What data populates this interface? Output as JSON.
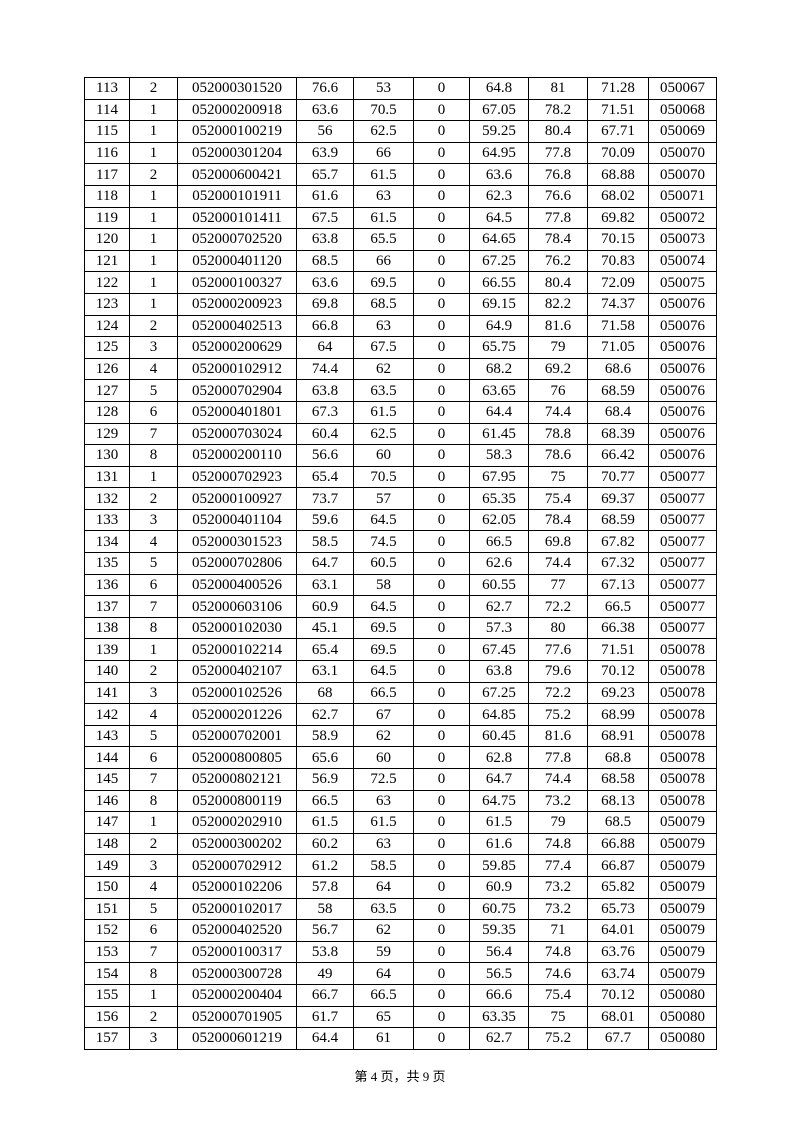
{
  "table": {
    "rows": [
      [
        "113",
        "2",
        "052000301520",
        "76.6",
        "53",
        "0",
        "64.8",
        "81",
        "71.28",
        "050067"
      ],
      [
        "114",
        "1",
        "052000200918",
        "63.6",
        "70.5",
        "0",
        "67.05",
        "78.2",
        "71.51",
        "050068"
      ],
      [
        "115",
        "1",
        "052000100219",
        "56",
        "62.5",
        "0",
        "59.25",
        "80.4",
        "67.71",
        "050069"
      ],
      [
        "116",
        "1",
        "052000301204",
        "63.9",
        "66",
        "0",
        "64.95",
        "77.8",
        "70.09",
        "050070"
      ],
      [
        "117",
        "2",
        "052000600421",
        "65.7",
        "61.5",
        "0",
        "63.6",
        "76.8",
        "68.88",
        "050070"
      ],
      [
        "118",
        "1",
        "052000101911",
        "61.6",
        "63",
        "0",
        "62.3",
        "76.6",
        "68.02",
        "050071"
      ],
      [
        "119",
        "1",
        "052000101411",
        "67.5",
        "61.5",
        "0",
        "64.5",
        "77.8",
        "69.82",
        "050072"
      ],
      [
        "120",
        "1",
        "052000702520",
        "63.8",
        "65.5",
        "0",
        "64.65",
        "78.4",
        "70.15",
        "050073"
      ],
      [
        "121",
        "1",
        "052000401120",
        "68.5",
        "66",
        "0",
        "67.25",
        "76.2",
        "70.83",
        "050074"
      ],
      [
        "122",
        "1",
        "052000100327",
        "63.6",
        "69.5",
        "0",
        "66.55",
        "80.4",
        "72.09",
        "050075"
      ],
      [
        "123",
        "1",
        "052000200923",
        "69.8",
        "68.5",
        "0",
        "69.15",
        "82.2",
        "74.37",
        "050076"
      ],
      [
        "124",
        "2",
        "052000402513",
        "66.8",
        "63",
        "0",
        "64.9",
        "81.6",
        "71.58",
        "050076"
      ],
      [
        "125",
        "3",
        "052000200629",
        "64",
        "67.5",
        "0",
        "65.75",
        "79",
        "71.05",
        "050076"
      ],
      [
        "126",
        "4",
        "052000102912",
        "74.4",
        "62",
        "0",
        "68.2",
        "69.2",
        "68.6",
        "050076"
      ],
      [
        "127",
        "5",
        "052000702904",
        "63.8",
        "63.5",
        "0",
        "63.65",
        "76",
        "68.59",
        "050076"
      ],
      [
        "128",
        "6",
        "052000401801",
        "67.3",
        "61.5",
        "0",
        "64.4",
        "74.4",
        "68.4",
        "050076"
      ],
      [
        "129",
        "7",
        "052000703024",
        "60.4",
        "62.5",
        "0",
        "61.45",
        "78.8",
        "68.39",
        "050076"
      ],
      [
        "130",
        "8",
        "052000200110",
        "56.6",
        "60",
        "0",
        "58.3",
        "78.6",
        "66.42",
        "050076"
      ],
      [
        "131",
        "1",
        "052000702923",
        "65.4",
        "70.5",
        "0",
        "67.95",
        "75",
        "70.77",
        "050077"
      ],
      [
        "132",
        "2",
        "052000100927",
        "73.7",
        "57",
        "0",
        "65.35",
        "75.4",
        "69.37",
        "050077"
      ],
      [
        "133",
        "3",
        "052000401104",
        "59.6",
        "64.5",
        "0",
        "62.05",
        "78.4",
        "68.59",
        "050077"
      ],
      [
        "134",
        "4",
        "052000301523",
        "58.5",
        "74.5",
        "0",
        "66.5",
        "69.8",
        "67.82",
        "050077"
      ],
      [
        "135",
        "5",
        "052000702806",
        "64.7",
        "60.5",
        "0",
        "62.6",
        "74.4",
        "67.32",
        "050077"
      ],
      [
        "136",
        "6",
        "052000400526",
        "63.1",
        "58",
        "0",
        "60.55",
        "77",
        "67.13",
        "050077"
      ],
      [
        "137",
        "7",
        "052000603106",
        "60.9",
        "64.5",
        "0",
        "62.7",
        "72.2",
        "66.5",
        "050077"
      ],
      [
        "138",
        "8",
        "052000102030",
        "45.1",
        "69.5",
        "0",
        "57.3",
        "80",
        "66.38",
        "050077"
      ],
      [
        "139",
        "1",
        "052000102214",
        "65.4",
        "69.5",
        "0",
        "67.45",
        "77.6",
        "71.51",
        "050078"
      ],
      [
        "140",
        "2",
        "052000402107",
        "63.1",
        "64.5",
        "0",
        "63.8",
        "79.6",
        "70.12",
        "050078"
      ],
      [
        "141",
        "3",
        "052000102526",
        "68",
        "66.5",
        "0",
        "67.25",
        "72.2",
        "69.23",
        "050078"
      ],
      [
        "142",
        "4",
        "052000201226",
        "62.7",
        "67",
        "0",
        "64.85",
        "75.2",
        "68.99",
        "050078"
      ],
      [
        "143",
        "5",
        "052000702001",
        "58.9",
        "62",
        "0",
        "60.45",
        "81.6",
        "68.91",
        "050078"
      ],
      [
        "144",
        "6",
        "052000800805",
        "65.6",
        "60",
        "0",
        "62.8",
        "77.8",
        "68.8",
        "050078"
      ],
      [
        "145",
        "7",
        "052000802121",
        "56.9",
        "72.5",
        "0",
        "64.7",
        "74.4",
        "68.58",
        "050078"
      ],
      [
        "146",
        "8",
        "052000800119",
        "66.5",
        "63",
        "0",
        "64.75",
        "73.2",
        "68.13",
        "050078"
      ],
      [
        "147",
        "1",
        "052000202910",
        "61.5",
        "61.5",
        "0",
        "61.5",
        "79",
        "68.5",
        "050079"
      ],
      [
        "148",
        "2",
        "052000300202",
        "60.2",
        "63",
        "0",
        "61.6",
        "74.8",
        "66.88",
        "050079"
      ],
      [
        "149",
        "3",
        "052000702912",
        "61.2",
        "58.5",
        "0",
        "59.85",
        "77.4",
        "66.87",
        "050079"
      ],
      [
        "150",
        "4",
        "052000102206",
        "57.8",
        "64",
        "0",
        "60.9",
        "73.2",
        "65.82",
        "050079"
      ],
      [
        "151",
        "5",
        "052000102017",
        "58",
        "63.5",
        "0",
        "60.75",
        "73.2",
        "65.73",
        "050079"
      ],
      [
        "152",
        "6",
        "052000402520",
        "56.7",
        "62",
        "0",
        "59.35",
        "71",
        "64.01",
        "050079"
      ],
      [
        "153",
        "7",
        "052000100317",
        "53.8",
        "59",
        "0",
        "56.4",
        "74.8",
        "63.76",
        "050079"
      ],
      [
        "154",
        "8",
        "052000300728",
        "49",
        "64",
        "0",
        "56.5",
        "74.6",
        "63.74",
        "050079"
      ],
      [
        "155",
        "1",
        "052000200404",
        "66.7",
        "66.5",
        "0",
        "66.6",
        "75.4",
        "70.12",
        "050080"
      ],
      [
        "156",
        "2",
        "052000701905",
        "61.7",
        "65",
        "0",
        "63.35",
        "75",
        "68.01",
        "050080"
      ],
      [
        "157",
        "3",
        "052000601219",
        "64.4",
        "61",
        "0",
        "62.7",
        "75.2",
        "67.7",
        "050080"
      ]
    ]
  },
  "footer": {
    "page_label": "第 4 页，共 9 页"
  }
}
